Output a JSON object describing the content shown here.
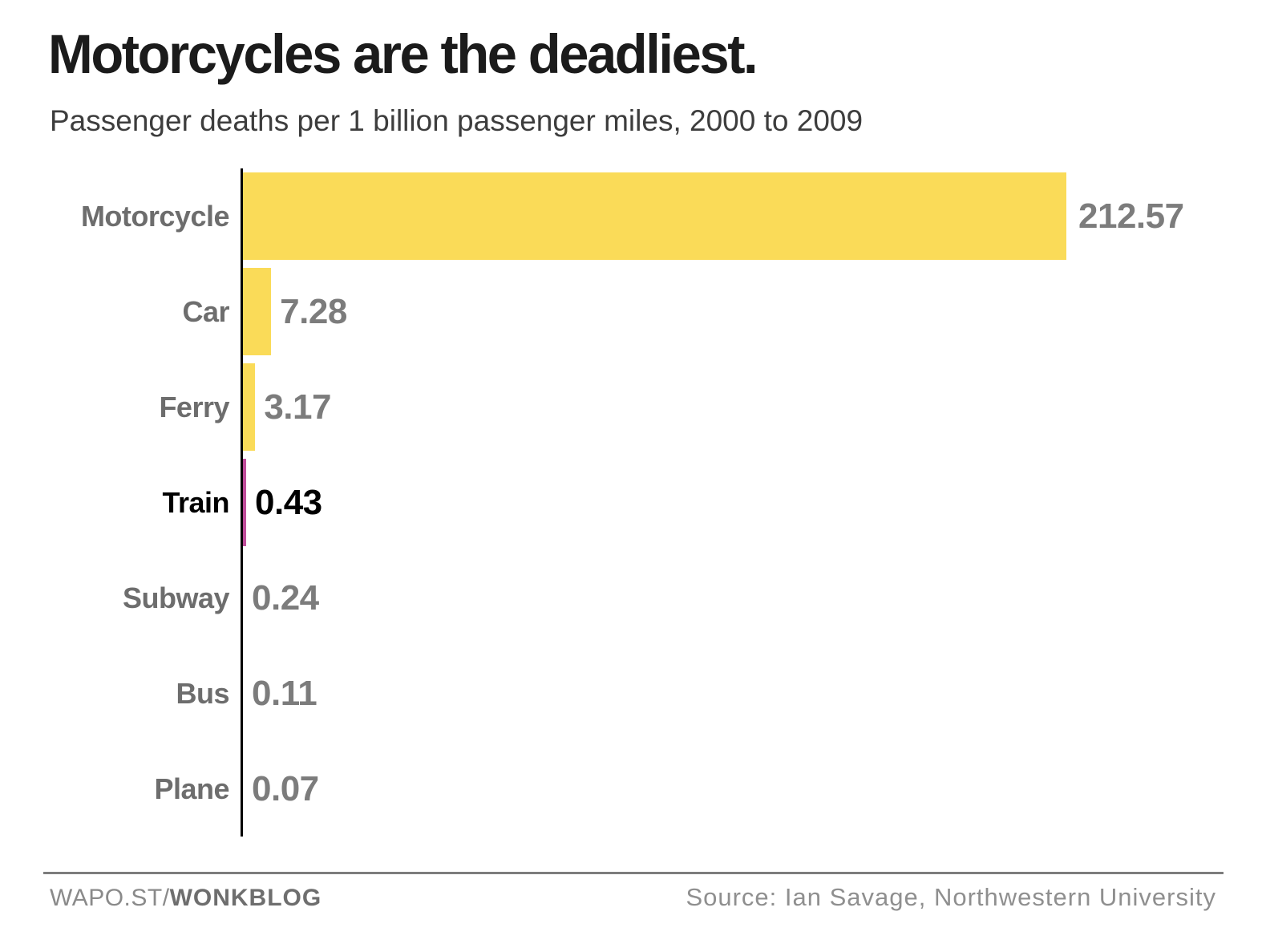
{
  "header": {
    "title": "Motorcycles are the deadliest.",
    "subtitle": "Passenger deaths per 1 billion passenger miles, 2000 to 2009"
  },
  "footer": {
    "left_prefix": "WAPO.ST/",
    "left_bold": "WONKBLOG",
    "source": "Source: Ian Savage, Northwestern University"
  },
  "colors": {
    "bar_yellow": "#FADB58",
    "highlight_pink": "#BF4D9A",
    "axis_black": "#000000",
    "label_gray": "#6d6d6d",
    "value_gray": "#7c7c7c",
    "highlight_text_black": "#000000",
    "rule_gray": "#7d7d7d",
    "title_black": "#1b1b1b",
    "subtitle_gray": "#3d3d3d"
  },
  "chart_data": {
    "type": "bar",
    "orientation": "horizontal",
    "title": "Motorcycles are the deadliest.",
    "subtitle": "Passenger deaths per 1 billion passenger miles, 2000 to 2009",
    "categories": [
      "Motorcycle",
      "Car",
      "Ferry",
      "Train",
      "Subway",
      "Bus",
      "Plane"
    ],
    "values": [
      212.57,
      7.28,
      3.17,
      0.43,
      0.24,
      0.11,
      0.07
    ],
    "value_labels": [
      "212.57",
      "7.28",
      "3.17",
      "0.43",
      "0.24",
      "0.11",
      "0.07"
    ],
    "highlight_category": "Train",
    "xlabel": "",
    "ylabel": "",
    "xlim": [
      0,
      213
    ],
    "grid": false,
    "legend": false,
    "data_labels": "outside-end"
  }
}
